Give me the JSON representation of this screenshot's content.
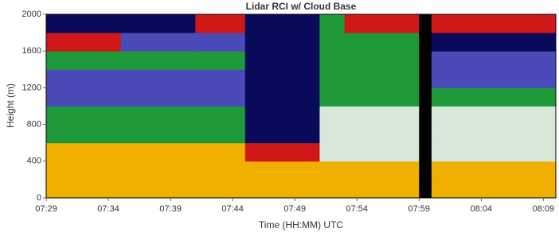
{
  "chart_data": {
    "type": "heatmap",
    "title": "Lidar RCI w/ Cloud Base",
    "xlabel": "Time (HH:MM) UTC",
    "ylabel": "Height (m)",
    "xlim": [
      0,
      41
    ],
    "ylim": [
      0,
      2000
    ],
    "xticks": [
      {
        "value": 0,
        "label": "07:29"
      },
      {
        "value": 5,
        "label": "07:34"
      },
      {
        "value": 10,
        "label": "07:39"
      },
      {
        "value": 15,
        "label": "07:44"
      },
      {
        "value": 20,
        "label": "07:49"
      },
      {
        "value": 25,
        "label": "07:54"
      },
      {
        "value": 30,
        "label": "07:59"
      },
      {
        "value": 35,
        "label": "08:04"
      },
      {
        "value": 40,
        "label": "08:09"
      }
    ],
    "yticks": [
      0,
      400,
      800,
      1200,
      1600,
      2000
    ],
    "x_bins": [
      0,
      2,
      4,
      6,
      8,
      10,
      12,
      14,
      16,
      18,
      20,
      22,
      24,
      26,
      28,
      30,
      31,
      32,
      34,
      36,
      38,
      40,
      41
    ],
    "y_bins": [
      0,
      200,
      400,
      600,
      800,
      1000,
      1200,
      1400,
      1600,
      1800,
      2000
    ],
    "colors": [
      "#000000",
      "#0a0a5a",
      "#4a4ab8",
      "#1e9a3a",
      "#d8e8d8",
      "#f0b000",
      "#d01818"
    ],
    "z": [
      [
        5,
        5,
        5,
        5,
        5,
        5,
        5,
        5,
        5,
        5,
        5,
        5,
        5,
        5,
        5,
        0,
        5,
        5,
        5,
        5,
        5,
        5
      ],
      [
        5,
        5,
        5,
        5,
        5,
        5,
        5,
        5,
        5,
        5,
        5,
        5,
        5,
        5,
        5,
        0,
        5,
        5,
        5,
        5,
        5,
        5
      ],
      [
        5,
        5,
        5,
        5,
        5,
        5,
        5,
        5,
        6,
        6,
        6,
        4,
        4,
        4,
        4,
        0,
        4,
        4,
        4,
        4,
        4,
        4
      ],
      [
        3,
        3,
        3,
        3,
        3,
        3,
        3,
        3,
        1,
        1,
        1,
        4,
        4,
        4,
        4,
        0,
        4,
        4,
        4,
        4,
        4,
        4
      ],
      [
        3,
        3,
        3,
        3,
        3,
        3,
        3,
        3,
        1,
        1,
        1,
        4,
        4,
        4,
        4,
        0,
        4,
        4,
        4,
        4,
        4,
        4
      ],
      [
        2,
        2,
        2,
        2,
        2,
        2,
        2,
        2,
        1,
        1,
        1,
        3,
        3,
        3,
        3,
        0,
        3,
        3,
        3,
        3,
        3,
        3
      ],
      [
        2,
        2,
        2,
        2,
        2,
        2,
        2,
        2,
        1,
        1,
        1,
        3,
        3,
        3,
        3,
        0,
        2,
        2,
        2,
        2,
        2,
        2
      ],
      [
        3,
        3,
        3,
        3,
        3,
        3,
        3,
        3,
        1,
        1,
        1,
        3,
        3,
        3,
        3,
        0,
        2,
        2,
        2,
        2,
        2,
        2
      ],
      [
        6,
        6,
        6,
        2,
        2,
        2,
        2,
        2,
        1,
        1,
        1,
        3,
        3,
        3,
        3,
        0,
        1,
        1,
        1,
        1,
        1,
        1
      ],
      [
        1,
        1,
        1,
        1,
        1,
        1,
        6,
        6,
        1,
        1,
        1,
        3,
        6,
        6,
        6,
        0,
        6,
        6,
        6,
        6,
        6,
        6
      ]
    ]
  }
}
